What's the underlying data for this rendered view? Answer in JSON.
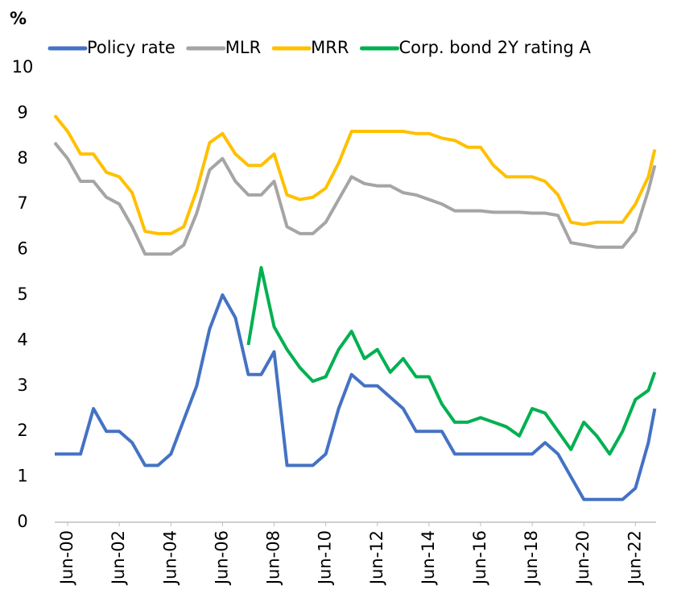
{
  "chart_data": {
    "type": "line",
    "y_label": "%",
    "x": [
      2000,
      2000.5,
      2001,
      2001.5,
      2002,
      2002.5,
      2003,
      2003.5,
      2004,
      2004.5,
      2005,
      2005.5,
      2006,
      2006.5,
      2007,
      2007.5,
      2008,
      2008.5,
      2009,
      2009.5,
      2010,
      2010.5,
      2011,
      2011.5,
      2012,
      2012.5,
      2013,
      2013.5,
      2014,
      2014.5,
      2015,
      2015.5,
      2016,
      2016.5,
      2017,
      2017.5,
      2018,
      2018.5,
      2019,
      2019.5,
      2020,
      2020.5,
      2021,
      2021.5,
      2022,
      2022.5,
      2023,
      2023.25
    ],
    "series": [
      {
        "name": "Policy rate",
        "color": "#4472c4",
        "values": [
          1.5,
          1.5,
          1.5,
          2.5,
          2.0,
          2.0,
          1.75,
          1.25,
          1.25,
          1.5,
          2.25,
          3.0,
          4.25,
          5.0,
          4.5,
          3.25,
          3.25,
          3.75,
          1.25,
          1.25,
          1.25,
          1.5,
          2.5,
          3.25,
          3.0,
          3.0,
          2.75,
          2.5,
          2.0,
          2.0,
          2.0,
          1.5,
          1.5,
          1.5,
          1.5,
          1.5,
          1.5,
          1.5,
          1.75,
          1.5,
          1.0,
          0.5,
          0.5,
          0.5,
          0.5,
          0.75,
          1.75,
          2.5
        ]
      },
      {
        "name": "MLR",
        "color": "#a5a5a5",
        "values": [
          8.35,
          8.0,
          7.5,
          7.5,
          7.15,
          7.0,
          6.5,
          5.9,
          5.9,
          5.9,
          6.1,
          6.8,
          7.75,
          8.0,
          7.5,
          7.2,
          7.2,
          7.5,
          6.5,
          6.35,
          6.35,
          6.6,
          7.1,
          7.6,
          7.45,
          7.4,
          7.4,
          7.25,
          7.2,
          7.1,
          7.0,
          6.85,
          6.85,
          6.85,
          6.82,
          6.82,
          6.82,
          6.8,
          6.8,
          6.75,
          6.15,
          6.1,
          6.05,
          6.05,
          6.05,
          6.4,
          7.3,
          7.85
        ]
      },
      {
        "name": "MRR",
        "color": "#ffc000",
        "values": [
          8.95,
          8.6,
          8.1,
          8.1,
          7.7,
          7.6,
          7.25,
          6.4,
          6.35,
          6.35,
          6.5,
          7.3,
          8.35,
          8.55,
          8.1,
          7.85,
          7.85,
          8.1,
          7.2,
          7.1,
          7.15,
          7.35,
          7.9,
          8.6,
          8.6,
          8.6,
          8.6,
          8.6,
          8.55,
          8.55,
          8.45,
          8.4,
          8.25,
          8.25,
          7.85,
          7.6,
          7.6,
          7.6,
          7.5,
          7.2,
          6.6,
          6.55,
          6.6,
          6.6,
          6.6,
          7.0,
          7.6,
          8.2
        ]
      },
      {
        "name": "Corp. bond 2Y rating A",
        "color": "#00b050",
        "values": [
          null,
          null,
          null,
          null,
          null,
          null,
          null,
          null,
          null,
          null,
          null,
          null,
          null,
          null,
          null,
          3.9,
          5.6,
          4.3,
          3.8,
          3.4,
          3.1,
          3.2,
          3.8,
          4.2,
          3.6,
          3.8,
          3.3,
          3.6,
          3.2,
          3.2,
          2.6,
          2.2,
          2.2,
          2.3,
          2.2,
          2.1,
          1.9,
          2.5,
          2.4,
          2.0,
          1.6,
          2.2,
          1.9,
          1.5,
          2.0,
          2.7,
          2.9,
          3.3
        ]
      }
    ],
    "xlim": [
      2000,
      2023.3
    ],
    "xticks": [
      {
        "value": 2000.5,
        "label": "Jun-00"
      },
      {
        "value": 2002.5,
        "label": "Jun-02"
      },
      {
        "value": 2004.5,
        "label": "Jun-04"
      },
      {
        "value": 2006.5,
        "label": "Jun-06"
      },
      {
        "value": 2008.5,
        "label": "Jun-08"
      },
      {
        "value": 2010.5,
        "label": "Jun-10"
      },
      {
        "value": 2012.5,
        "label": "Jun-12"
      },
      {
        "value": 2014.5,
        "label": "Jun-14"
      },
      {
        "value": 2016.5,
        "label": "Jun-16"
      },
      {
        "value": 2018.5,
        "label": "Jun-18"
      },
      {
        "value": 2020.5,
        "label": "Jun-20"
      },
      {
        "value": 2022.5,
        "label": "Jun-22"
      }
    ],
    "ylim": [
      0,
      10
    ],
    "yticks": [
      0,
      1,
      2,
      3,
      4,
      5,
      6,
      7,
      8,
      9,
      10
    ],
    "legend": "top",
    "grid": false
  }
}
